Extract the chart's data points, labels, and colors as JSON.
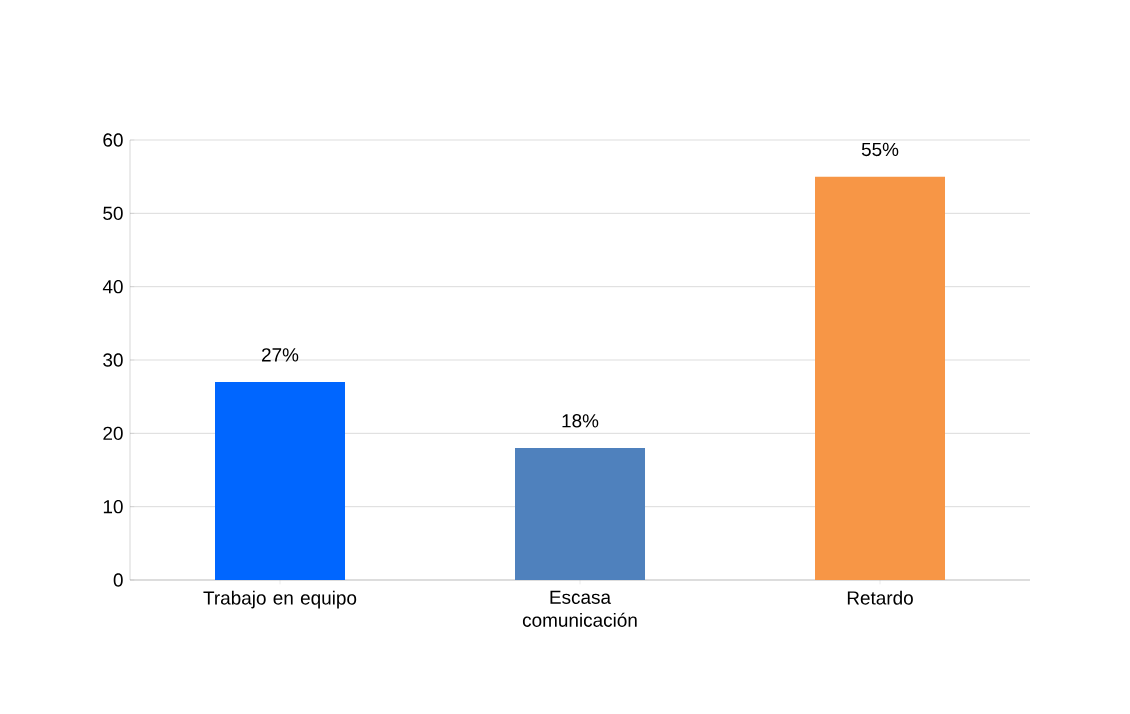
{
  "chart_data": {
    "type": "bar",
    "categories": [
      "Trabajo en equipo",
      "Escasa comunicación",
      "Retardo"
    ],
    "values": [
      27,
      18,
      55
    ],
    "colors": [
      "#0066ff",
      "#4f81bd",
      "#f79646"
    ],
    "value_labels": [
      "27%",
      "18%",
      "55%"
    ],
    "ylim": [
      0,
      60
    ],
    "yticks": [
      0,
      10,
      20,
      30,
      40,
      50,
      60
    ],
    "grid": "y"
  }
}
